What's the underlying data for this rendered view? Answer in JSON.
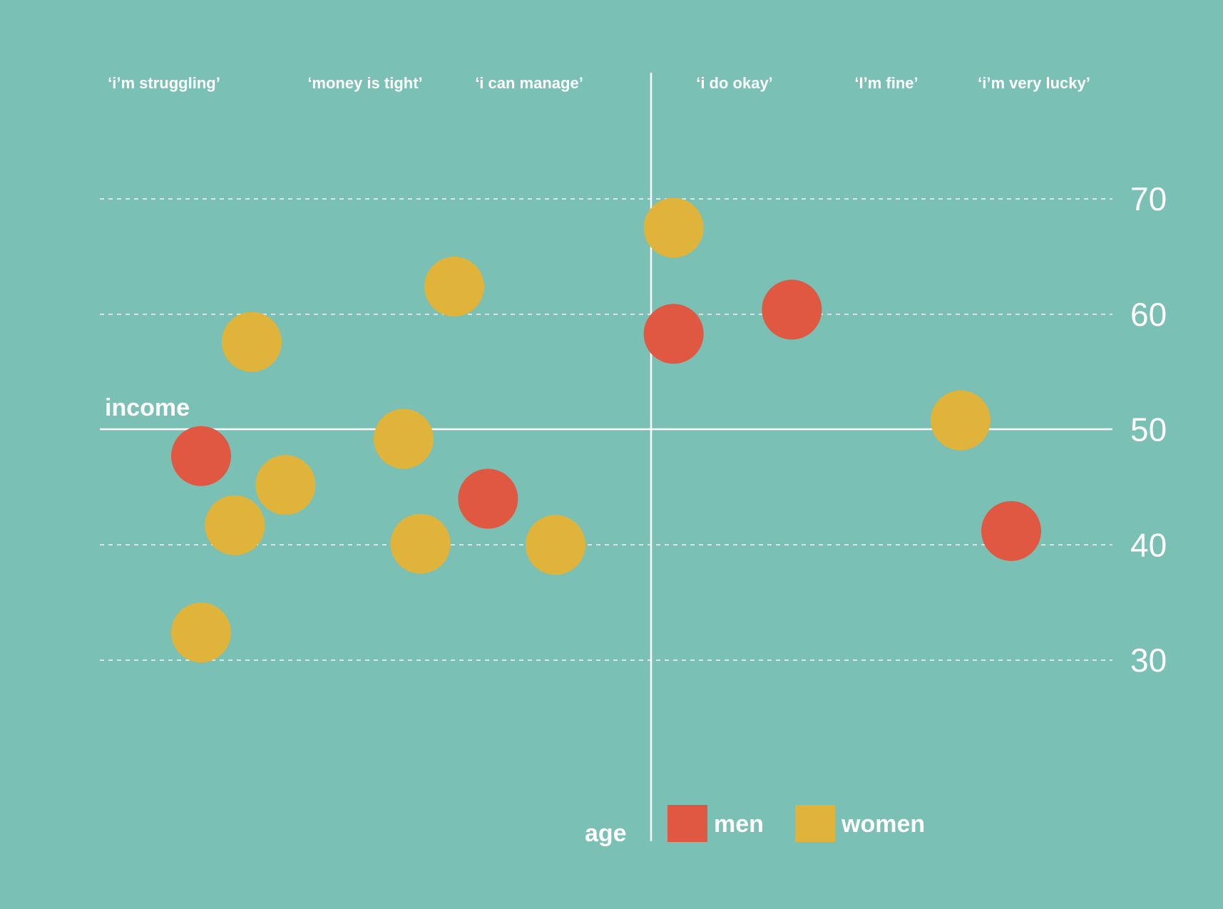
{
  "chart_data": {
    "type": "scatter",
    "categories": [
      "‘i’m struggling’",
      "‘money is tight’",
      "‘i can manage’",
      "‘i do okay’",
      "‘I’m fine’",
      "‘i’m very lucky’"
    ],
    "xlabel": "income",
    "ylabel": "age",
    "yticks": [
      "70",
      "60",
      "50",
      "40",
      "30"
    ],
    "yticks_values": [
      70,
      60,
      50,
      40,
      30
    ],
    "ylim": [
      30,
      70
    ],
    "xlim": [
      0,
      6
    ],
    "grid": true,
    "legend": {
      "placement": "bottom-center",
      "entries": [
        {
          "name": "men",
          "color": "#e05841"
        },
        {
          "name": "women",
          "color": "#e0b43a"
        }
      ]
    },
    "series": [
      {
        "name": "men",
        "color": "#e05841",
        "points": [
          {
            "x": 0.6,
            "y": 47.7
          },
          {
            "x": 2.3,
            "y": 44.0
          },
          {
            "x": 3.4,
            "y": 58.3
          },
          {
            "x": 4.1,
            "y": 60.4
          },
          {
            "x": 5.4,
            "y": 41.2
          }
        ]
      },
      {
        "name": "women",
        "color": "#e0b43a",
        "points": [
          {
            "x": 0.9,
            "y": 57.6
          },
          {
            "x": 2.1,
            "y": 62.4
          },
          {
            "x": 3.4,
            "y": 67.5
          },
          {
            "x": 1.8,
            "y": 49.2
          },
          {
            "x": 1.1,
            "y": 45.2
          },
          {
            "x": 0.8,
            "y": 41.7
          },
          {
            "x": 1.9,
            "y": 40.1
          },
          {
            "x": 2.7,
            "y": 40.0
          },
          {
            "x": 0.6,
            "y": 32.4
          },
          {
            "x": 5.1,
            "y": 50.8
          }
        ]
      }
    ]
  }
}
